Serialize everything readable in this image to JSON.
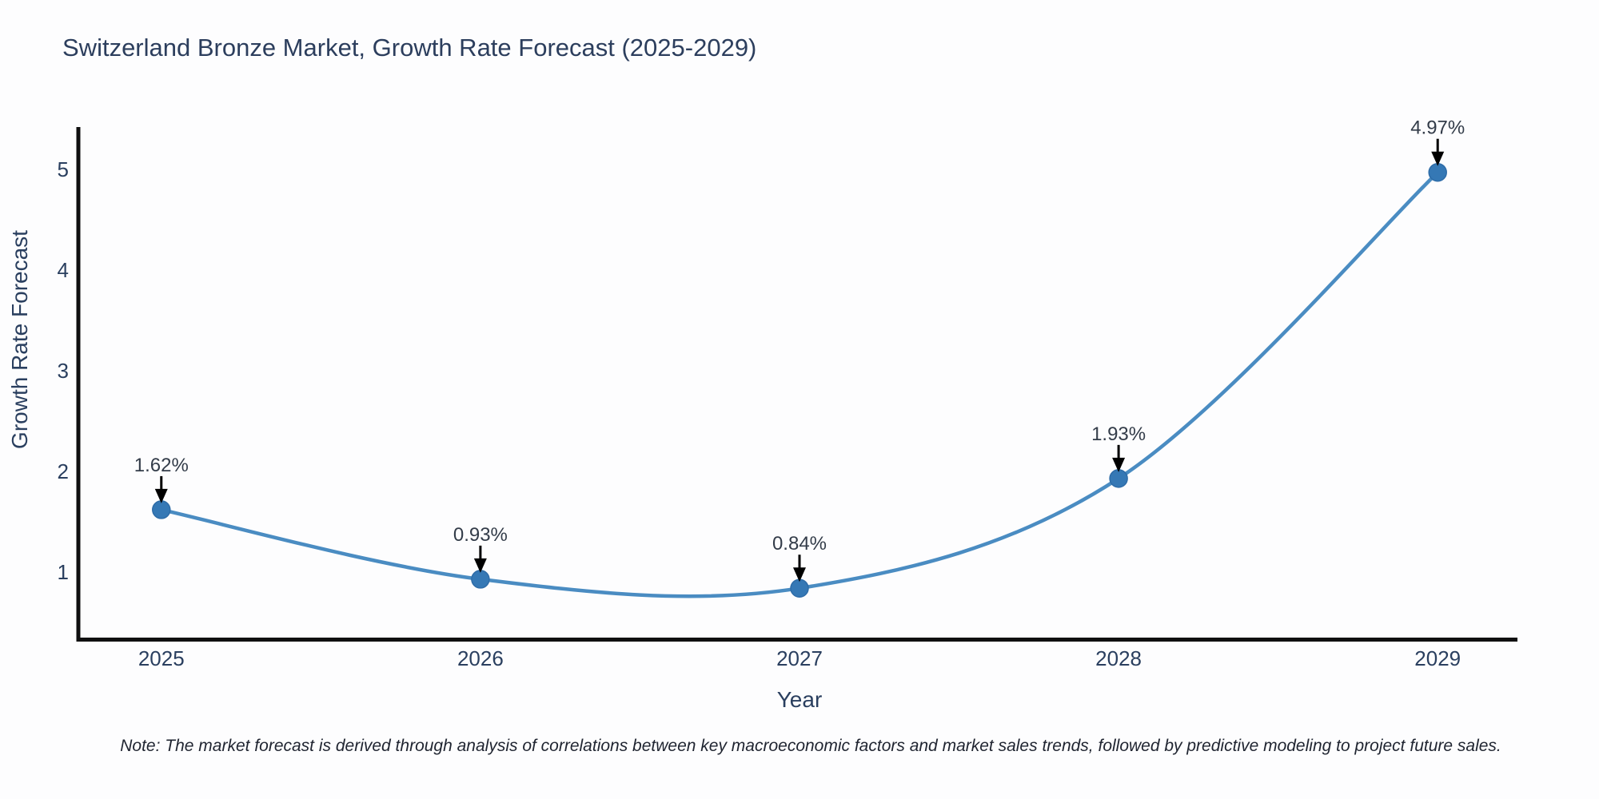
{
  "chart_data": {
    "type": "line",
    "title": "Switzerland Bronze Market, Growth Rate Forecast (2025-2029)",
    "xlabel": "Year",
    "ylabel": "Growth Rate Forecast",
    "x": [
      2025,
      2026,
      2027,
      2028,
      2029
    ],
    "x_tick_labels": [
      "2025",
      "2026",
      "2027",
      "2028",
      "2029"
    ],
    "y_ticks": [
      1,
      2,
      3,
      4,
      5
    ],
    "series": [
      {
        "name": "Growth Rate Forecast",
        "values": [
          1.62,
          0.93,
          0.84,
          1.93,
          4.97
        ]
      }
    ],
    "point_labels": [
      "1.62%",
      "0.93%",
      "0.84%",
      "1.93%",
      "4.97%"
    ],
    "xlim": [
      2024.74,
      2029.25
    ],
    "ylim": [
      0.33,
      5.42
    ],
    "grid": false,
    "legend": "none",
    "line_shape": "spline",
    "annotation_style": "label-above-with-down-arrow",
    "colors": {
      "line": "#4a8cc2",
      "marker": "#3578b5",
      "marker_edge": "#2e6ca8",
      "axis": "#101010",
      "tick_text": "#2a3f5f",
      "title_text": "#2c3e5d",
      "annotation_text": "#333c49",
      "arrow": "#000000",
      "background": "#fdfdfe"
    }
  },
  "note": {
    "text": "Note: The market forecast is derived through analysis of correlations between key macroeconomic factors and market sales trends, followed by predictive modeling to project future sales."
  }
}
